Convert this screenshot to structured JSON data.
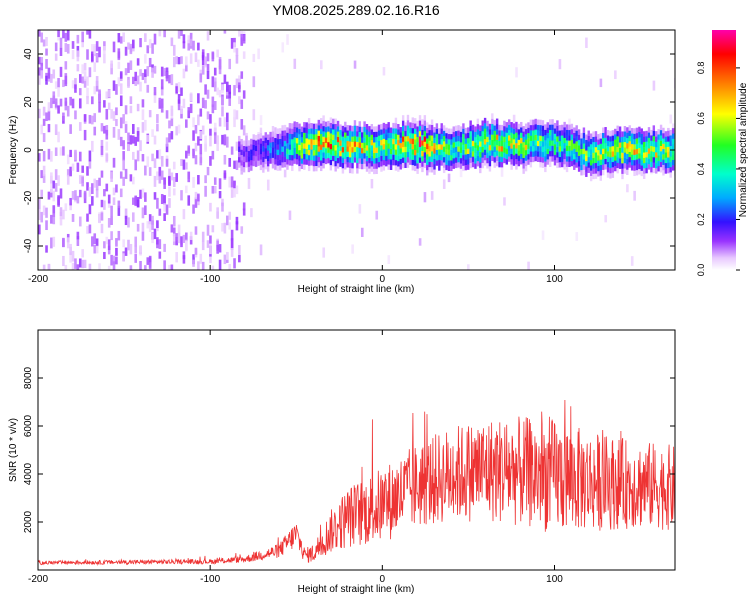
{
  "title": "YM08.2025.289.02.16.R16",
  "chart_data": [
    {
      "type": "heatmap",
      "name": "spectrogram",
      "xlabel": "Height of straight line (km)",
      "ylabel": "Frequency (Hz)",
      "xlim": [
        -200,
        170
      ],
      "ylim": [
        -50,
        50
      ],
      "x_ticks": [
        -200,
        -100,
        0,
        100
      ],
      "y_ticks": [
        -40,
        -20,
        0,
        20,
        40
      ],
      "colorbar": {
        "label": "Normalized spectral amplitude",
        "range": [
          0,
          0.95
        ],
        "ticks": [
          0.0,
          0.2,
          0.4,
          0.6,
          0.8
        ]
      },
      "ridge": {
        "x": [
          -80,
          -60,
          -40,
          -20,
          0,
          20,
          40,
          60,
          80,
          100,
          120,
          140,
          165
        ],
        "freq_center": [
          -2,
          0,
          3,
          2,
          1,
          2,
          0,
          3,
          2,
          3,
          -2,
          0,
          0
        ],
        "peak_amplitude": [
          0.15,
          0.3,
          0.8,
          0.7,
          0.6,
          0.85,
          0.5,
          0.7,
          0.6,
          0.5,
          0.55,
          0.65,
          0.6
        ]
      },
      "noise_region": {
        "x_from": -200,
        "x_to": -80,
        "amplitude": 0.1
      }
    },
    {
      "type": "line",
      "name": "snr",
      "color": "#ee3333",
      "xlabel": "Height of straight line (km)",
      "ylabel": "SNR (10 * v/v)",
      "xlim": [
        -200,
        170
      ],
      "ylim": [
        0,
        10000
      ],
      "x_ticks": [
        -200,
        -100,
        0,
        100
      ],
      "y_ticks": [
        2000,
        4000,
        6000,
        8000
      ],
      "envelope": {
        "x": [
          -200,
          -100,
          -80,
          -60,
          -50,
          -45,
          -40,
          -30,
          -20,
          0,
          20,
          40,
          60,
          80,
          100,
          120,
          140,
          160,
          170
        ],
        "mean": [
          300,
          350,
          450,
          800,
          1500,
          600,
          700,
          1600,
          2200,
          2700,
          3500,
          4000,
          4200,
          4100,
          3900,
          3700,
          3600,
          3500,
          3400
        ],
        "spread": [
          80,
          100,
          150,
          300,
          600,
          300,
          400,
          900,
          1300,
          1600,
          1800,
          2000,
          2200,
          2300,
          2400,
          2100,
          1900,
          1800,
          1800
        ]
      }
    }
  ]
}
